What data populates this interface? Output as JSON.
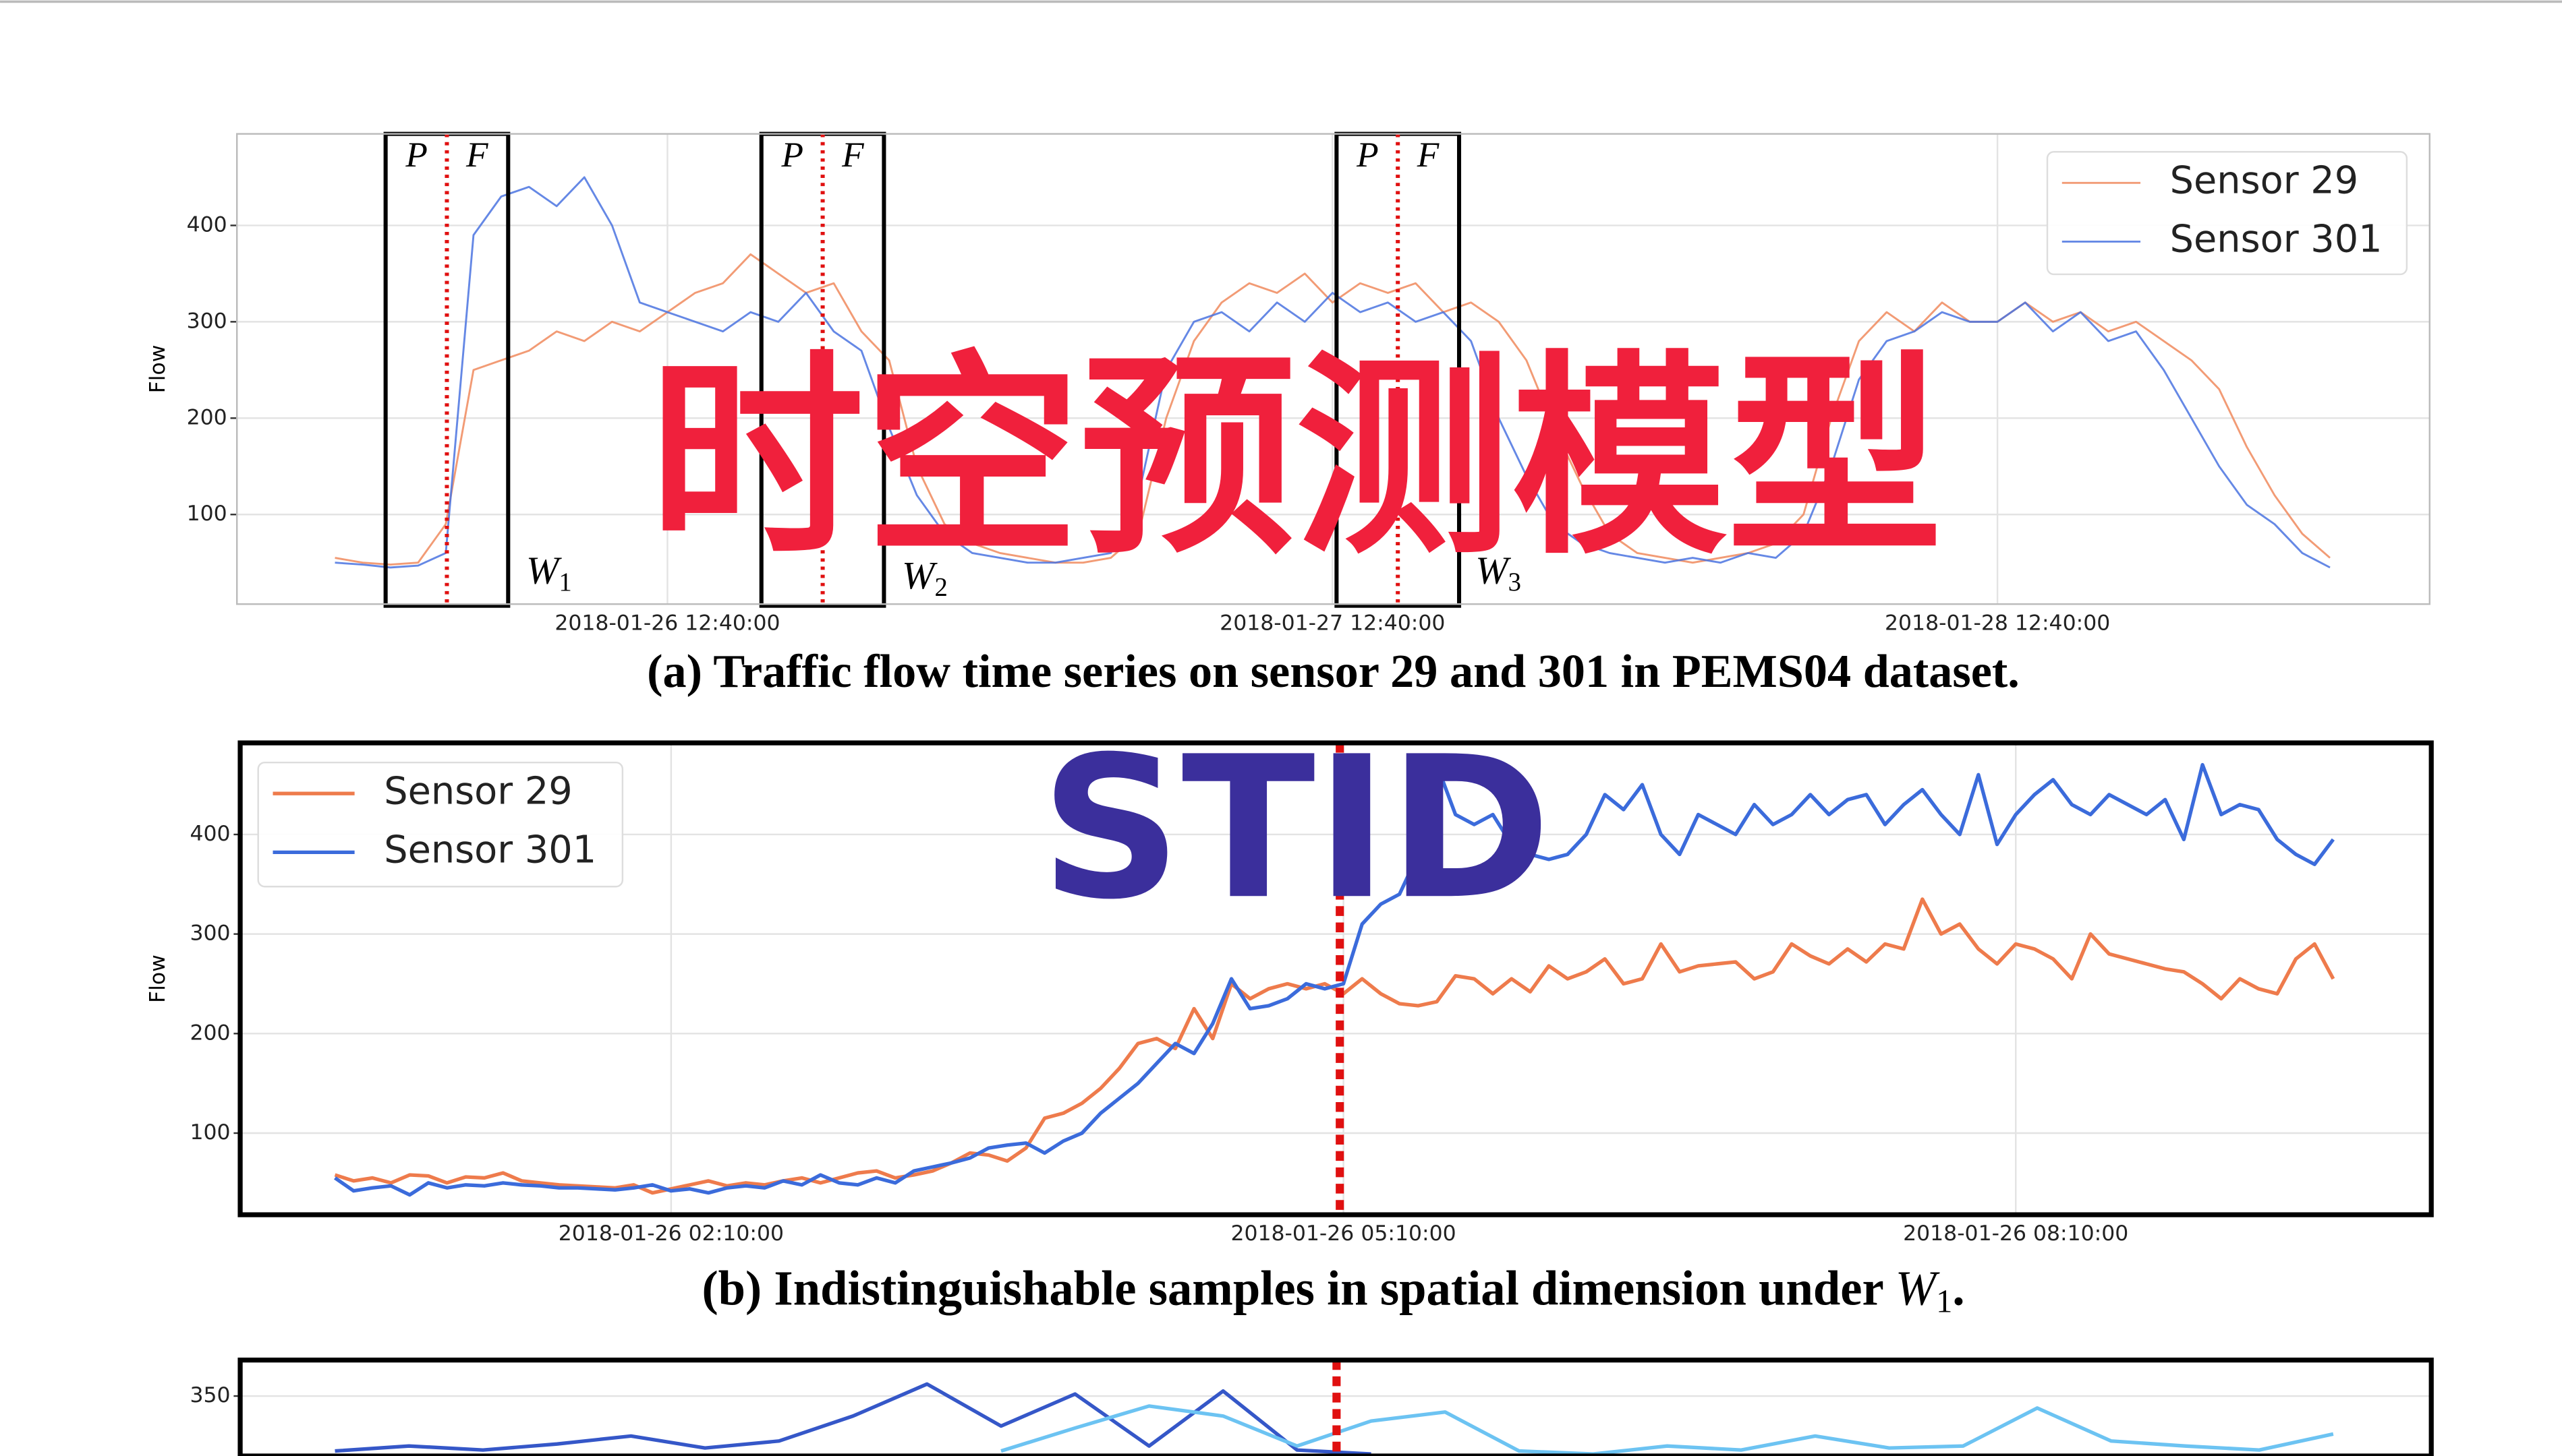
{
  "overlay": {
    "title": "时空预测模型",
    "subtitle": "STID"
  },
  "chart_data": [
    {
      "type": "line",
      "y_label": "Flow",
      "categories": [
        null,
        null,
        null,
        null,
        null,
        null,
        null,
        null,
        null,
        null,
        null,
        null,
        "2018-01-26 12:40:00",
        null,
        null,
        null,
        null,
        null,
        null,
        null,
        null,
        null,
        null,
        null,
        null,
        null,
        null,
        null,
        null,
        null,
        null,
        null,
        null,
        null,
        null,
        null,
        "2018-01-27 12:40:00",
        null,
        null,
        null,
        null,
        null,
        null,
        null,
        null,
        null,
        null,
        null,
        null,
        null,
        null,
        null,
        null,
        null,
        null,
        null,
        null,
        null,
        null,
        null,
        "2018-01-28 12:40:00",
        null,
        null,
        null,
        null,
        null,
        null,
        null,
        null,
        null,
        null,
        null,
        null
      ],
      "series": [
        {
          "name": "Sensor 29",
          "color": "#f08a5d",
          "values": [
            55,
            50,
            48,
            50,
            90,
            250,
            260,
            270,
            290,
            280,
            300,
            290,
            310,
            330,
            340,
            370,
            350,
            330,
            340,
            290,
            260,
            150,
            90,
            70,
            60,
            55,
            50,
            50,
            55,
            80,
            200,
            280,
            320,
            340,
            330,
            350,
            320,
            340,
            330,
            340,
            310,
            320,
            300,
            260,
            190,
            130,
            80,
            60,
            55,
            50,
            55,
            60,
            70,
            100,
            200,
            280,
            310,
            290,
            320,
            300,
            300,
            320,
            300,
            310,
            290,
            300,
            280,
            260,
            230,
            170,
            120,
            80,
            55
          ]
        },
        {
          "name": "Sensor 301",
          "color": "#4a73e0",
          "values": [
            50,
            48,
            45,
            47,
            60,
            390,
            430,
            440,
            420,
            450,
            400,
            320,
            310,
            300,
            290,
            310,
            300,
            330,
            290,
            270,
            190,
            120,
            80,
            60,
            55,
            50,
            50,
            55,
            60,
            120,
            250,
            300,
            310,
            290,
            320,
            300,
            330,
            310,
            320,
            300,
            310,
            280,
            200,
            140,
            90,
            70,
            60,
            55,
            50,
            55,
            50,
            60,
            55,
            80,
            150,
            240,
            280,
            290,
            310,
            300,
            300,
            320,
            290,
            310,
            280,
            290,
            250,
            200,
            150,
            110,
            90,
            60,
            45
          ]
        }
      ],
      "ylim": [
        7,
        495
      ],
      "yticks": [
        100,
        200,
        300,
        400
      ],
      "grid": true,
      "legend": "upper right",
      "windows": [
        {
          "past": "P",
          "future": "F",
          "label": "W",
          "sub": "1"
        },
        {
          "past": "P",
          "future": "F",
          "label": "W",
          "sub": "2"
        },
        {
          "past": "P",
          "future": "F",
          "label": "W",
          "sub": "3"
        }
      ],
      "caption": "(a) Traffic flow time series on sensor 29 and 301 in PEMS04 dataset."
    },
    {
      "type": "line",
      "y_label": "Flow",
      "categories": [
        null,
        null,
        null,
        null,
        null,
        null,
        null,
        null,
        null,
        null,
        null,
        null,
        null,
        null,
        null,
        null,
        null,
        null,
        "2018-01-26 02:10:00",
        null,
        null,
        null,
        null,
        null,
        null,
        null,
        null,
        null,
        null,
        null,
        null,
        null,
        null,
        null,
        null,
        null,
        null,
        null,
        null,
        null,
        null,
        null,
        null,
        null,
        null,
        null,
        null,
        null,
        null,
        null,
        null,
        null,
        null,
        null,
        "2018-01-26 05:10:00",
        null,
        null,
        null,
        null,
        null,
        null,
        null,
        null,
        null,
        null,
        null,
        null,
        null,
        null,
        null,
        null,
        null,
        null,
        null,
        null,
        null,
        null,
        null,
        null,
        null,
        null,
        null,
        null,
        null,
        null,
        null,
        null,
        null,
        null,
        null,
        "2018-01-26 08:10:00",
        null,
        null,
        null,
        null,
        null,
        null,
        null,
        null,
        null,
        null,
        null,
        null,
        null,
        null,
        null,
        null,
        null
      ],
      "series": [
        {
          "name": "Sensor 29",
          "color": "#ee7b4c",
          "values": [
            58,
            52,
            55,
            50,
            58,
            57,
            50,
            56,
            55,
            60,
            52,
            50,
            48,
            47,
            46,
            45,
            48,
            40,
            44,
            48,
            52,
            47,
            50,
            48,
            52,
            55,
            50,
            55,
            60,
            62,
            55,
            58,
            62,
            70,
            80,
            78,
            72,
            85,
            115,
            120,
            130,
            145,
            165,
            190,
            195,
            185,
            225,
            195,
            250,
            235,
            245,
            250,
            245,
            250,
            240,
            255,
            240,
            230,
            228,
            232,
            258,
            255,
            240,
            255,
            242,
            268,
            255,
            262,
            275,
            250,
            255,
            290,
            262,
            268,
            270,
            272,
            255,
            262,
            290,
            278,
            270,
            285,
            272,
            290,
            285,
            335,
            300,
            310,
            285,
            270,
            290,
            285,
            275,
            255,
            300,
            280,
            275,
            270,
            265,
            262,
            250,
            235,
            255,
            245,
            240,
            275,
            290,
            255
          ]
        },
        {
          "name": "Sensor 301",
          "color": "#3b6bdb",
          "values": [
            55,
            42,
            45,
            47,
            38,
            50,
            45,
            48,
            47,
            50,
            48,
            47,
            45,
            45,
            44,
            43,
            45,
            48,
            42,
            44,
            40,
            45,
            47,
            45,
            52,
            48,
            58,
            50,
            48,
            55,
            50,
            62,
            66,
            70,
            75,
            85,
            88,
            90,
            80,
            92,
            100,
            120,
            135,
            150,
            170,
            190,
            180,
            210,
            255,
            225,
            228,
            235,
            250,
            245,
            250,
            310,
            330,
            340,
            380,
            470,
            420,
            410,
            420,
            390,
            380,
            375,
            380,
            400,
            440,
            425,
            450,
            400,
            380,
            420,
            410,
            400,
            430,
            410,
            420,
            440,
            420,
            435,
            440,
            410,
            430,
            445,
            420,
            400,
            460,
            390,
            420,
            440,
            455,
            430,
            420,
            440,
            430,
            420,
            435,
            395,
            470,
            420,
            430,
            425,
            395,
            380,
            370,
            395
          ]
        }
      ],
      "ylim": [
        18,
        492
      ],
      "yticks": [
        100,
        200,
        300,
        400
      ],
      "grid": true,
      "legend": "upper left",
      "caption": [
        "(b) Indistinguishable samples in spatial dimension under ",
        "W",
        "1",
        "."
      ]
    },
    {
      "type": "line",
      "series": [
        {
          "color": "#3557c8",
          "values": [
            295,
            300,
            296,
            302,
            310,
            298,
            305,
            330,
            362,
            320,
            352,
            300,
            355,
            296,
            292,
            null,
            null,
            null,
            null,
            null,
            null,
            null,
            null,
            null,
            null,
            null,
            null,
            null
          ]
        },
        {
          "color": "#6cc3f2",
          "values": [
            null,
            null,
            null,
            null,
            null,
            null,
            null,
            null,
            null,
            295,
            318,
            340,
            330,
            300,
            325,
            334,
            295,
            292,
            300,
            296,
            310,
            298,
            300,
            338,
            305,
            300,
            296,
            312
          ]
        }
      ],
      "ylim": [
        290,
        386
      ],
      "yticks": [
        350
      ],
      "grid": true
    }
  ]
}
